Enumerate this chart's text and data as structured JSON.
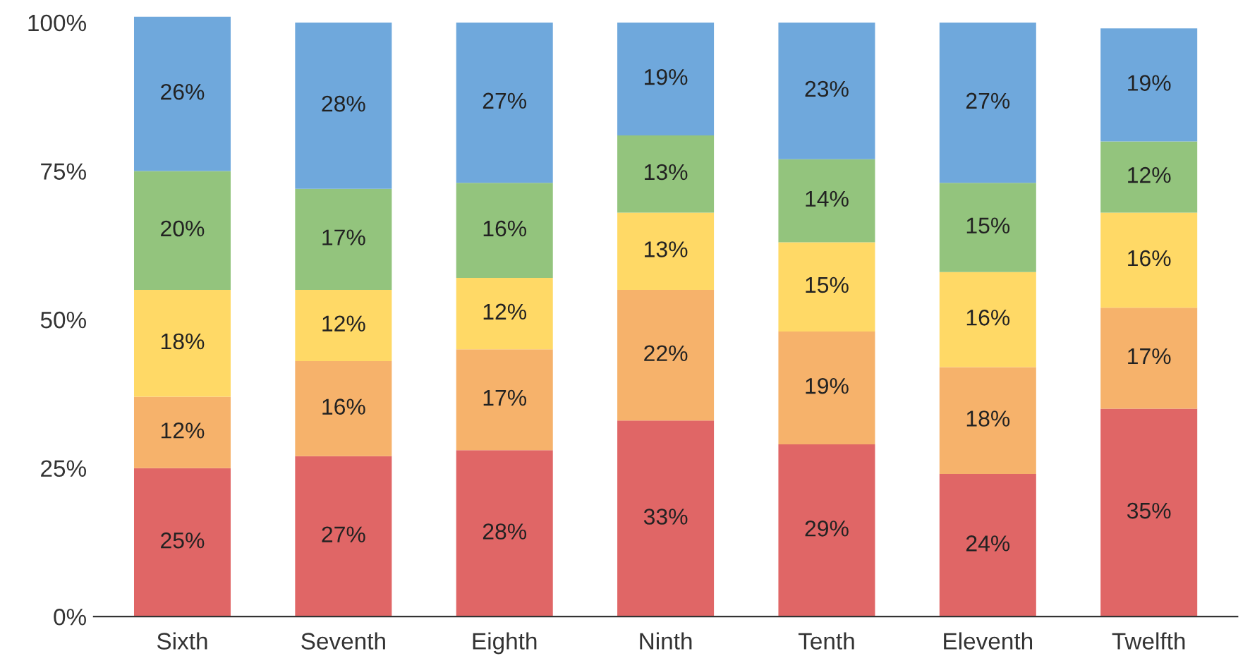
{
  "chart_data": {
    "type": "bar",
    "stacked": true,
    "categories": [
      "Sixth",
      "Seventh",
      "Eighth",
      "Ninth",
      "Tenth",
      "Eleventh",
      "Twelfth"
    ],
    "series": [
      {
        "color": "#e06666",
        "values": [
          25,
          27,
          28,
          33,
          29,
          24,
          35
        ],
        "value_labels": [
          "25%",
          "27%",
          "28%",
          "33%",
          "29%",
          "24%",
          "35%"
        ]
      },
      {
        "color": "#f6b26b",
        "values": [
          12,
          16,
          17,
          22,
          19,
          18,
          17
        ],
        "value_labels": [
          "12%",
          "16%",
          "17%",
          "22%",
          "19%",
          "18%",
          "17%"
        ]
      },
      {
        "color": "#ffd966",
        "values": [
          18,
          12,
          12,
          13,
          15,
          16,
          16
        ],
        "value_labels": [
          "18%",
          "12%",
          "12%",
          "13%",
          "15%",
          "16%",
          "16%"
        ]
      },
      {
        "color": "#93c47d",
        "values": [
          20,
          17,
          16,
          13,
          14,
          15,
          12
        ],
        "value_labels": [
          "20%",
          "17%",
          "16%",
          "13%",
          "14%",
          "15%",
          "12%"
        ]
      },
      {
        "color": "#6fa8dc",
        "values": [
          26,
          28,
          27,
          19,
          23,
          27,
          19
        ],
        "value_labels": [
          "26%",
          "28%",
          "27%",
          "19%",
          "23%",
          "27%",
          "19%"
        ]
      }
    ],
    "ylim": [
      0,
      101
    ],
    "yticks": [
      {
        "value": 0,
        "label": "0%"
      },
      {
        "value": 25,
        "label": "25%"
      },
      {
        "value": 50,
        "label": "50%"
      },
      {
        "value": 75,
        "label": "75%"
      },
      {
        "value": 100,
        "label": "100%"
      }
    ],
    "grid": false,
    "legend": false
  }
}
